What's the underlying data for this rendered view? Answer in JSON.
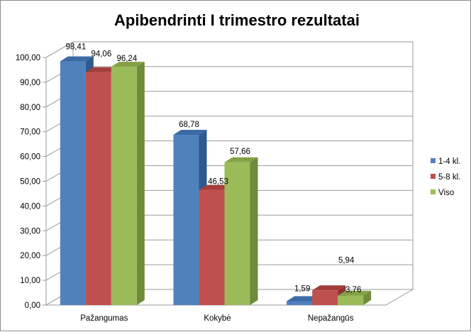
{
  "chart_data": {
    "type": "bar",
    "title": "Apibendrinti I trimestro  rezultatai",
    "categories": [
      "Pažangumas",
      "Kokybė",
      "Nepažangūs"
    ],
    "series": [
      {
        "name": "1-4 kl.",
        "values": [
          98.41,
          68.78,
          1.59
        ],
        "labels": [
          "98,41",
          "68,78",
          "1,59"
        ],
        "color": "#4f81bd",
        "side": "#2f5a8f",
        "top": "#3c6aa4"
      },
      {
        "name": "5-8 kl.",
        "values": [
          94.06,
          46.53,
          5.94
        ],
        "labels": [
          "94,06",
          "46,53",
          "5,94"
        ],
        "color": "#c0504d",
        "side": "#8c3432",
        "top": "#a33e3b"
      },
      {
        "name": "Viso",
        "values": [
          96.24,
          57.66,
          3.76
        ],
        "labels": [
          "96,24",
          "57,66",
          "3,76"
        ],
        "color": "#9bbb59",
        "side": "#6f8a3a",
        "top": "#84a147"
      }
    ],
    "yticks": [
      "0,00",
      "10,00",
      "20,00",
      "30,00",
      "40,00",
      "50,00",
      "60,00",
      "70,00",
      "80,00",
      "90,00",
      "100,00"
    ],
    "ylim": [
      0,
      100
    ],
    "grid": true,
    "legend": "right",
    "xlabel": "",
    "ylabel": ""
  }
}
